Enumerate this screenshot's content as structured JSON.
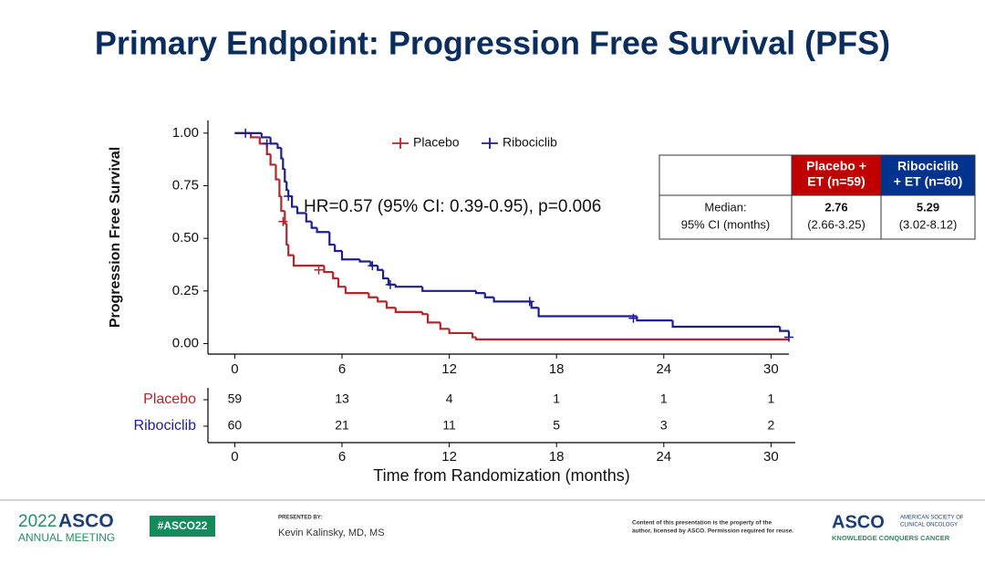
{
  "header": {
    "title": "Primary Endpoint: Progression Free Survival (PFS)"
  },
  "chart_data": {
    "type": "step",
    "y_label": "Progression Free Survival",
    "x_label": "Time from Randomization (months)",
    "annotation": "HR=0.57 (95% CI: 0.39-0.95), p=0.006",
    "legend": "top",
    "xlim": [
      -1.5,
      31
    ],
    "xticks": [
      0,
      6,
      12,
      18,
      24,
      30
    ],
    "ylim": [
      -0.05,
      1.06
    ],
    "yticks": [
      {
        "value": 1,
        "label": "1.00"
      },
      0.75,
      {
        "value": 0.5,
        "label": "0.50"
      },
      0.25,
      {
        "value": 0,
        "label": "0.00"
      }
    ],
    "series": [
      {
        "name": "Placebo",
        "color": "#b3262c",
        "x": [
          0,
          0.9,
          1.4,
          1.8,
          2.0,
          2.3,
          2.5,
          2.6,
          2.8,
          2.9,
          3.0,
          3.3,
          5.0,
          5.5,
          5.8,
          6.2,
          7.5,
          8.0,
          8.5,
          9.0,
          10.5,
          10.8,
          11.5,
          12.0,
          13.3,
          13.5,
          31
        ],
        "values": [
          1.0,
          0.98,
          0.95,
          0.9,
          0.85,
          0.78,
          0.7,
          0.63,
          0.57,
          0.47,
          0.42,
          0.37,
          0.34,
          0.31,
          0.27,
          0.24,
          0.22,
          0.2,
          0.17,
          0.15,
          0.14,
          0.1,
          0.07,
          0.05,
          0.03,
          0.02,
          0.02
        ],
        "censored": {
          "x": [
            2.7,
            4.7
          ],
          "y": [
            0.58,
            0.35
          ]
        }
      },
      {
        "name": "Ribociclib",
        "color": "#1e1e8c",
        "x": [
          0,
          1.5,
          2.0,
          2.4,
          2.6,
          2.7,
          2.8,
          2.9,
          3.0,
          3.2,
          3.5,
          4.0,
          4.3,
          4.6,
          5.3,
          5.6,
          6.0,
          7.0,
          7.6,
          8.0,
          8.3,
          8.6,
          9.0,
          10.5,
          13.5,
          14.0,
          14.5,
          16.6,
          17.0,
          22.5,
          24.5,
          30.5,
          31
        ],
        "values": [
          1.0,
          0.98,
          0.95,
          0.93,
          0.88,
          0.83,
          0.77,
          0.73,
          0.7,
          0.65,
          0.62,
          0.58,
          0.55,
          0.53,
          0.47,
          0.44,
          0.4,
          0.39,
          0.37,
          0.35,
          0.31,
          0.28,
          0.27,
          0.25,
          0.24,
          0.22,
          0.2,
          0.17,
          0.13,
          0.11,
          0.08,
          0.06,
          0.03
        ],
        "censored": {
          "x": [
            0.6,
            1.8,
            3.0,
            7.7,
            8.7,
            16.5,
            22.3,
            31
          ],
          "y": [
            1.0,
            0.95,
            0.7,
            0.37,
            0.28,
            0.2,
            0.12,
            0.03
          ]
        }
      }
    ],
    "risk_table": {
      "rows": [
        {
          "name": "Placebo",
          "values": [
            59,
            13,
            4,
            1,
            1,
            1
          ]
        },
        {
          "name": "Ribociclib",
          "values": [
            60,
            21,
            11,
            5,
            3,
            2
          ]
        }
      ]
    }
  },
  "median_table": {
    "columns": [
      {
        "lines": [
          "Placebo +",
          "ET (n=59)"
        ],
        "color": "#c00000"
      },
      {
        "lines": [
          "Ribociclib",
          "+ ET (n=60)"
        ],
        "color": "#00338d"
      }
    ],
    "row_label": [
      "Median:",
      "95% CI (months)"
    ],
    "cells": [
      [
        "2.76",
        "(2.66-3.25)"
      ],
      [
        "5.29",
        "(3.02-8.12)"
      ]
    ]
  },
  "footer": {
    "year": "2022",
    "asco": "ASCO",
    "meeting": "ANNUAL MEETING",
    "hashtag": "#ASCO22",
    "presented_by": "PRESENTED BY:",
    "presenter": "Kevin Kalinsky, MD, MS",
    "notice": [
      "Content of this presentation is the property of the",
      "author, licensed by ASCO. Permission required for reuse."
    ],
    "logo": "ASCO",
    "society": [
      "AMERICAN SOCIETY OF",
      "CLINICAL ONCOLOGY"
    ],
    "tagline": "KNOWLEDGE CONQUERS CANCER"
  }
}
